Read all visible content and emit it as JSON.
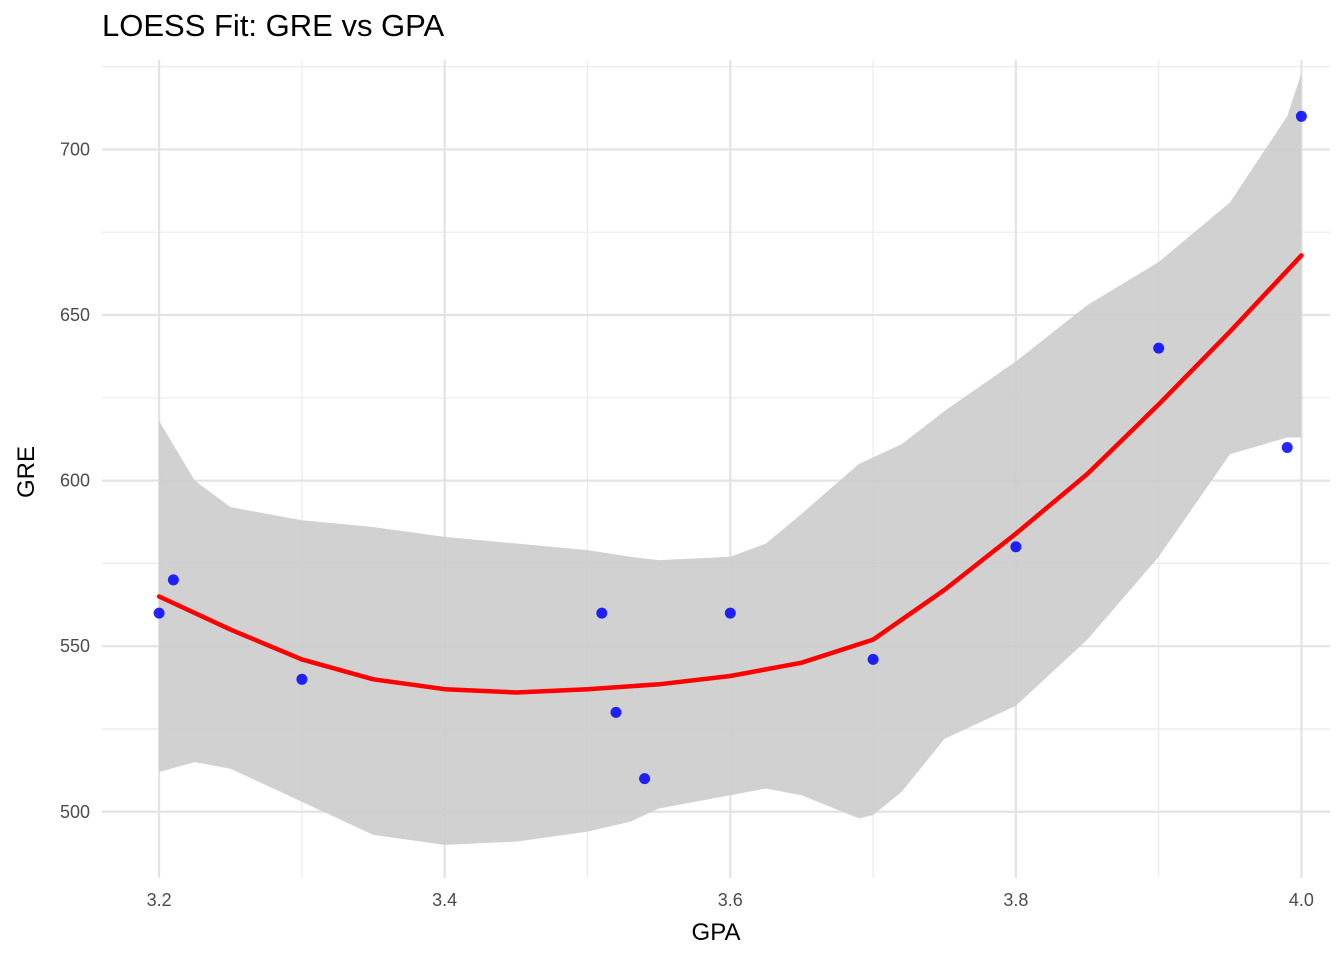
{
  "chart_data": {
    "type": "scatter",
    "title": "LOESS Fit: GRE vs GPA",
    "xlabel": "GPA",
    "ylabel": "GRE",
    "xlim": [
      3.16,
      4.02
    ],
    "ylim": [
      480,
      727
    ],
    "x_ticks": [
      3.2,
      3.4,
      3.6,
      3.8,
      4.0
    ],
    "x_tick_labels": [
      "3.2",
      "3.4",
      "3.6",
      "3.8",
      "4.0"
    ],
    "y_ticks": [
      500,
      550,
      600,
      650,
      700
    ],
    "y_tick_labels": [
      "500",
      "550",
      "600",
      "650",
      "700"
    ],
    "grid": true,
    "points": {
      "color": "#0000ff",
      "x": [
        3.2,
        3.21,
        3.3,
        3.51,
        3.52,
        3.54,
        3.6,
        3.7,
        3.8,
        3.9,
        3.99,
        4.0
      ],
      "y": [
        560,
        570,
        540,
        560,
        530,
        510,
        560,
        546,
        580,
        640,
        610,
        710
      ]
    },
    "fit": {
      "color": "#ff0000",
      "x": [
        3.2,
        3.25,
        3.3,
        3.35,
        3.4,
        3.45,
        3.5,
        3.55,
        3.6,
        3.65,
        3.7,
        3.75,
        3.8,
        3.85,
        3.9,
        3.95,
        4.0
      ],
      "y": [
        565,
        555,
        546,
        540,
        537,
        536,
        537,
        538.5,
        541,
        545,
        552,
        567,
        584,
        602,
        623,
        645,
        668
      ]
    },
    "band": {
      "color": "#cccccc",
      "x": [
        3.2,
        3.225,
        3.25,
        3.3,
        3.35,
        3.4,
        3.45,
        3.5,
        3.53,
        3.55,
        3.6,
        3.625,
        3.65,
        3.69,
        3.7,
        3.72,
        3.75,
        3.8,
        3.85,
        3.9,
        3.95,
        3.99,
        4.0
      ],
      "lower": [
        512,
        515,
        513,
        503,
        493,
        490,
        491,
        494,
        497,
        501,
        505,
        507,
        505,
        498,
        499,
        506,
        522,
        532,
        552,
        577,
        608,
        613,
        613
      ],
      "upper": [
        618,
        600,
        592,
        588,
        586,
        583,
        581,
        579,
        577,
        576,
        577,
        581,
        590,
        605,
        607,
        611,
        621,
        636,
        653,
        666,
        684,
        710,
        723
      ]
    }
  }
}
